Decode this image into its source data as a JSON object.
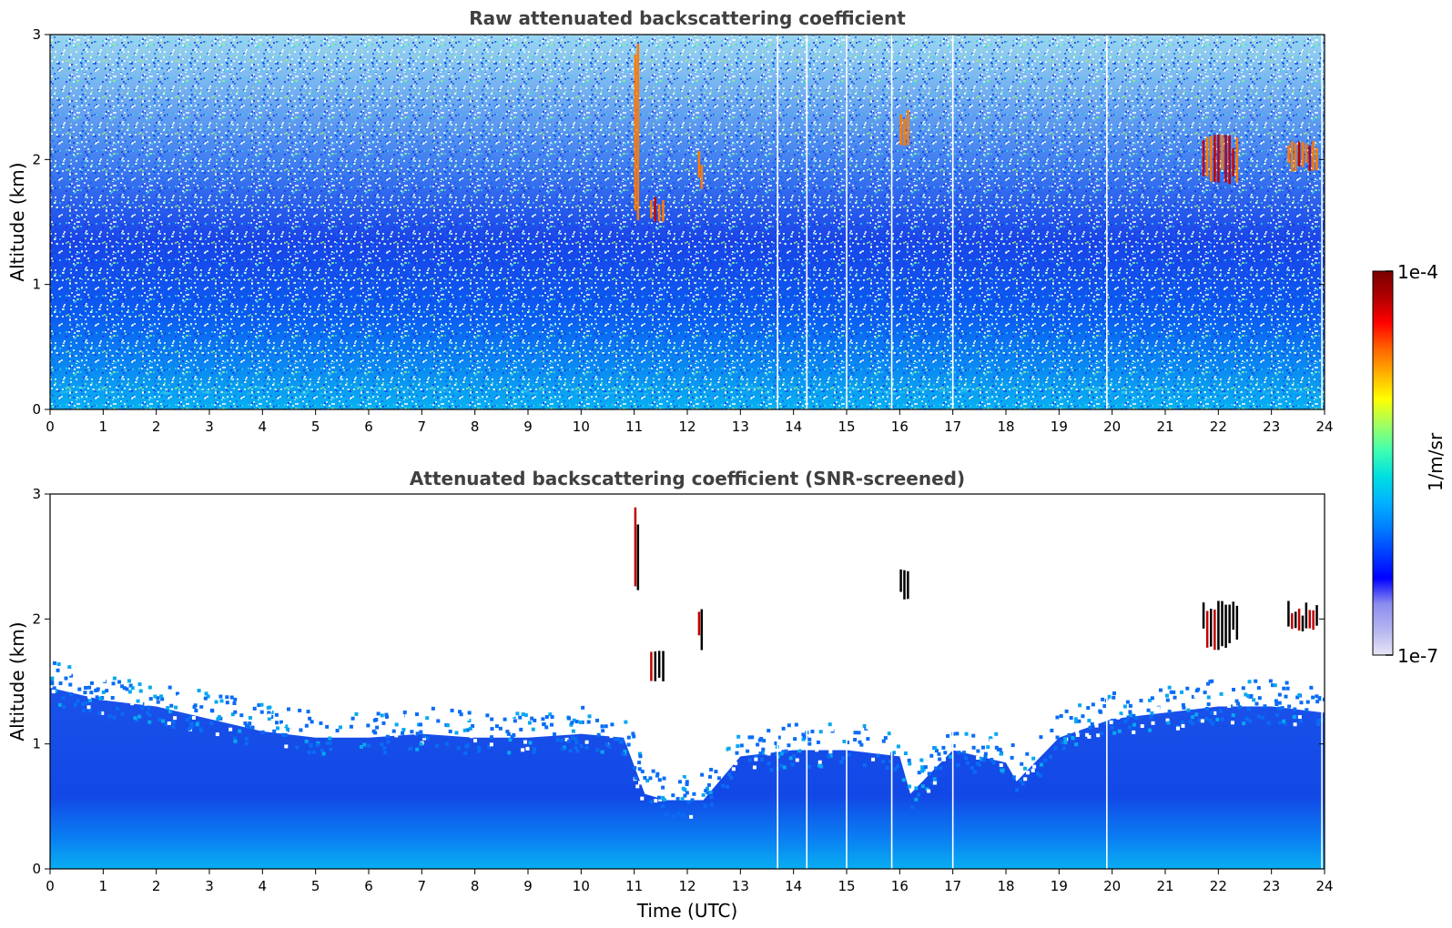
{
  "chart_data": [
    {
      "type": "heatmap",
      "title": "Raw attenuated backscattering coefficient",
      "xlabel": "",
      "ylabel": "Altitude (km)",
      "xlim": [
        0,
        24
      ],
      "ylim": [
        0,
        3
      ],
      "xticks": [
        "0",
        "1",
        "2",
        "3",
        "4",
        "5",
        "6",
        "7",
        "8",
        "9",
        "10",
        "11",
        "12",
        "13",
        "14",
        "15",
        "16",
        "17",
        "18",
        "19",
        "20",
        "21",
        "22",
        "23",
        "24"
      ],
      "yticks": [
        "0",
        "1",
        "2",
        "3"
      ],
      "grid": false,
      "screened": false,
      "gaps_utc": [
        13.7,
        14.25,
        15.0,
        15.85,
        17.0,
        19.9,
        23.95
      ],
      "cloud_features": [
        {
          "time_utc": [
            11.0,
            11.1
          ],
          "altitude_km": [
            1.5,
            3.0
          ]
        },
        {
          "time_utc": [
            11.3,
            11.6
          ],
          "altitude_km": [
            1.5,
            1.7
          ]
        },
        {
          "time_utc": [
            12.2,
            12.3
          ],
          "altitude_km": [
            1.75,
            2.1
          ]
        },
        {
          "time_utc": [
            16.0,
            16.2
          ],
          "altitude_km": [
            2.1,
            2.4
          ]
        },
        {
          "time_utc": [
            21.7,
            22.4
          ],
          "altitude_km": [
            1.8,
            2.2
          ]
        },
        {
          "time_utc": [
            23.3,
            23.9
          ],
          "altitude_km": [
            1.9,
            2.15
          ]
        }
      ]
    },
    {
      "type": "heatmap",
      "title": "Attenuated backscattering coefficient (SNR-screened)",
      "xlabel": "Time (UTC)",
      "ylabel": "Altitude (km)",
      "xlim": [
        0,
        24
      ],
      "ylim": [
        0,
        3
      ],
      "xticks": [
        "0",
        "1",
        "2",
        "3",
        "4",
        "5",
        "6",
        "7",
        "8",
        "9",
        "10",
        "11",
        "12",
        "13",
        "14",
        "15",
        "16",
        "17",
        "18",
        "19",
        "20",
        "21",
        "22",
        "23",
        "24"
      ],
      "yticks": [
        "0",
        "1",
        "2",
        "3"
      ],
      "grid": false,
      "screened": true,
      "boundary_layer_top_km": {
        "time_utc": [
          0,
          1,
          2,
          3,
          4,
          5,
          6,
          7,
          8,
          9,
          10,
          10.8,
          11.2,
          11.6,
          12.3,
          13,
          14,
          15,
          16,
          16.2,
          17,
          18,
          18.2,
          19,
          20,
          21,
          22,
          23,
          24
        ],
        "altitude_km": [
          1.45,
          1.35,
          1.3,
          1.2,
          1.1,
          1.05,
          1.05,
          1.08,
          1.05,
          1.05,
          1.08,
          1.05,
          0.6,
          0.55,
          0.55,
          0.9,
          0.95,
          0.95,
          0.9,
          0.6,
          0.95,
          0.85,
          0.7,
          1.05,
          1.2,
          1.25,
          1.3,
          1.3,
          1.25
        ]
      },
      "gaps_utc": [
        13.7,
        14.25,
        15.0,
        15.85,
        17.0,
        19.9,
        23.95
      ],
      "cloud_features": [
        {
          "time_utc": [
            11.0,
            11.1
          ],
          "altitude_km": [
            2.2,
            2.9
          ]
        },
        {
          "time_utc": [
            11.3,
            11.6
          ],
          "altitude_km": [
            1.5,
            1.75
          ]
        },
        {
          "time_utc": [
            12.2,
            12.3
          ],
          "altitude_km": [
            1.75,
            2.1
          ]
        },
        {
          "time_utc": [
            16.0,
            16.2
          ],
          "altitude_km": [
            2.1,
            2.4
          ]
        },
        {
          "time_utc": [
            21.7,
            22.4
          ],
          "altitude_km": [
            1.75,
            2.15
          ]
        },
        {
          "time_utc": [
            23.3,
            23.9
          ],
          "altitude_km": [
            1.9,
            2.15
          ]
        }
      ]
    }
  ],
  "colorbar": {
    "max_label": "1e-4",
    "min_label": "1e-7",
    "unit_label": "1/m/sr",
    "colors": [
      "#e6e6f5",
      "#b4b4f0",
      "#8c8cf0",
      "#0000ff",
      "#0040ff",
      "#0080ff",
      "#00b4ff",
      "#00e0e0",
      "#40ffb0",
      "#a0ff60",
      "#ffff00",
      "#ffb000",
      "#ff6000",
      "#ff0000",
      "#b00000",
      "#7a0000"
    ]
  },
  "palette": {
    "background": "#ffffff",
    "deep_blue": "#1a3ee6",
    "mid_blue": "#0a64f5",
    "light_blue": "#08a8f0",
    "noise_cyan": "#3cd2e6",
    "noise_green": "#9ae68c",
    "cloud_red": "#c00000",
    "cloud_black": "#000000"
  }
}
